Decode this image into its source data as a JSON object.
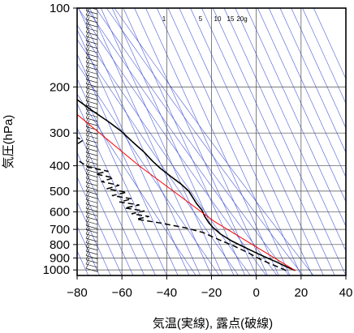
{
  "chart_data": {
    "type": "line",
    "title": "",
    "xlabel": "気温(実線), 露点(破線)",
    "ylabel": "気圧(hPa)",
    "xlim": [
      -80,
      40
    ],
    "ylim": [
      1050,
      100
    ],
    "y_scale": "log",
    "grid": true,
    "x_ticks": [
      "−80",
      "−60",
      "−40",
      "−20",
      "0",
      "20",
      "40"
    ],
    "x_tick_values": [
      -80,
      -60,
      -40,
      -20,
      0,
      20,
      40
    ],
    "y_ticks": [
      "100",
      "200",
      "300",
      "400",
      "500",
      "600",
      "700",
      "800",
      "900",
      "1000"
    ],
    "y_tick_values": [
      100,
      200,
      300,
      400,
      500,
      600,
      700,
      800,
      900,
      1000
    ],
    "mixing_ratio_labels": [
      "1",
      "5",
      "10",
      "15",
      "20g"
    ],
    "mixing_ratio_values": [
      1,
      5,
      10,
      15,
      20
    ],
    "series": [
      {
        "role": "temperature",
        "style": "solid",
        "color": "#000000",
        "points": [
          [
            18.4,
            1005
          ],
          [
            15,
            970
          ],
          [
            12,
            935
          ],
          [
            8,
            895
          ],
          [
            4,
            855
          ],
          [
            0,
            815
          ],
          [
            -4,
            775
          ],
          [
            -7.5,
            730
          ],
          [
            -9.5,
            690
          ],
          [
            -10.5,
            660
          ],
          [
            -11,
            625
          ],
          [
            -11,
            590
          ],
          [
            -12,
            560
          ],
          [
            -12.5,
            530
          ],
          [
            -13,
            500
          ],
          [
            -15,
            470
          ],
          [
            -18,
            440
          ],
          [
            -21,
            410
          ],
          [
            -23,
            385
          ],
          [
            -25,
            355
          ],
          [
            -28,
            325
          ],
          [
            -31,
            295
          ],
          [
            -35,
            270
          ],
          [
            -40,
            245
          ],
          [
            -45,
            220
          ],
          [
            -50,
            200
          ],
          [
            -55,
            180
          ],
          [
            -60,
            160
          ],
          [
            -64,
            145
          ],
          [
            -67,
            130
          ],
          [
            -69,
            115
          ],
          [
            -70,
            105
          ],
          [
            -70,
            100
          ]
        ]
      },
      {
        "role": "dewpoint",
        "style": "dashed",
        "color": "#000000",
        "points": [
          [
            14.3,
            1005
          ],
          [
            12,
            980
          ],
          [
            9,
            950
          ],
          [
            5,
            910
          ],
          [
            1,
            860
          ],
          [
            -4,
            810
          ],
          [
            -9,
            770
          ],
          [
            -15,
            720
          ],
          [
            -22,
            690
          ],
          [
            -33,
            660
          ],
          [
            -42,
            640
          ],
          [
            -36,
            625
          ],
          [
            -43,
            610
          ],
          [
            -37,
            595
          ],
          [
            -45,
            580
          ],
          [
            -38,
            565
          ],
          [
            -46,
            550
          ],
          [
            -40,
            535
          ],
          [
            -48,
            520
          ],
          [
            -41,
            505
          ],
          [
            -49,
            490
          ],
          [
            -43,
            475
          ],
          [
            -50,
            460
          ],
          [
            -44,
            445
          ],
          [
            -51,
            430
          ],
          [
            -45,
            420
          ],
          [
            -53,
            405
          ],
          [
            -55,
            390
          ],
          [
            -58,
            370
          ],
          [
            -62,
            355
          ],
          [
            -56,
            340
          ],
          [
            -50,
            320
          ],
          [
            -55,
            300
          ],
          [
            -60,
            280
          ],
          [
            -66,
            265
          ],
          [
            -62,
            255
          ],
          [
            -72,
            250
          ]
        ]
      },
      {
        "role": "reference-line",
        "style": "solid",
        "color": "#ff0000",
        "points": [
          [
            18.4,
            1005
          ],
          [
            -8,
            650
          ],
          [
            -30,
            400
          ],
          [
            -48,
            250
          ],
          [
            -58,
            200
          ]
        ]
      }
    ]
  }
}
